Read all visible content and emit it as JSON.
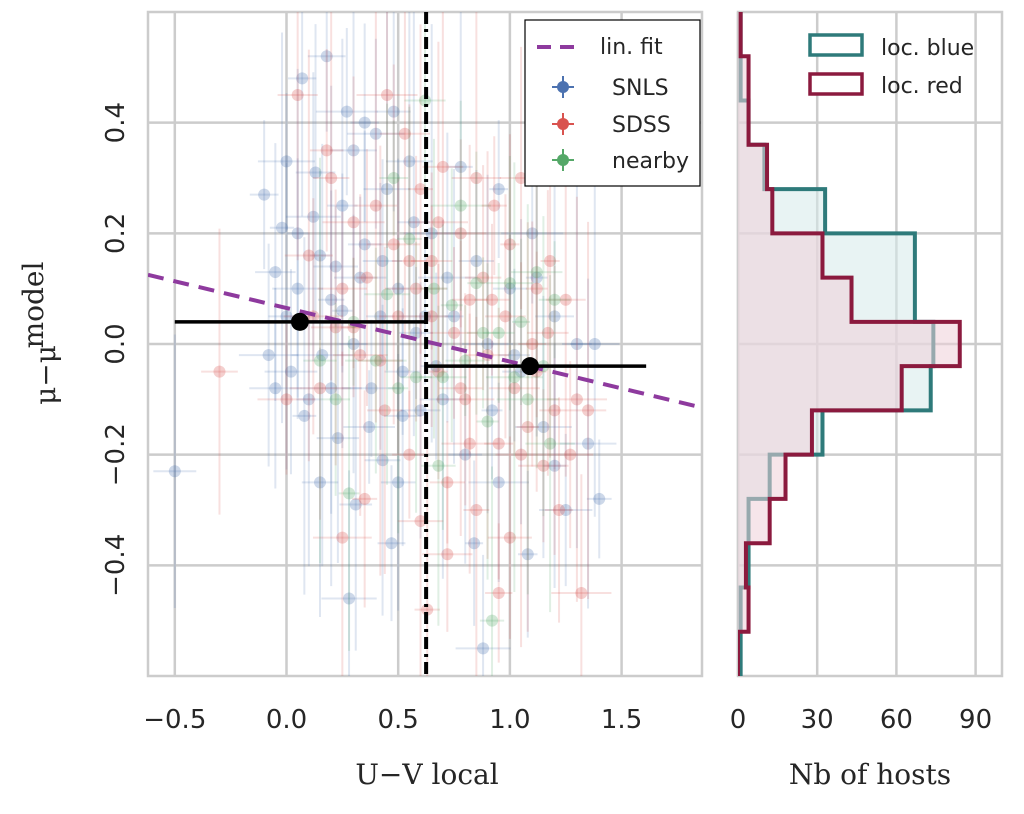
{
  "chart_data": [
    {
      "type": "scatter",
      "xlabel": "U−V local",
      "ylabel": "μ−μ^model",
      "ylabel_main": "μ−μ",
      "ylabel_sup": "model",
      "xlim": [
        -0.62,
        1.86
      ],
      "ylim": [
        -0.6,
        0.6
      ],
      "xticks": [
        -0.5,
        0.0,
        0.5,
        1.0,
        1.5
      ],
      "xtick_labels": [
        "−0.5",
        "0.0",
        "0.5",
        "1.0",
        "1.5"
      ],
      "yticks": [
        -0.4,
        -0.2,
        0.0,
        0.2,
        0.4
      ],
      "ytick_labels": [
        "−0.4",
        "−0.2",
        "0.0",
        "0.2",
        "0.4"
      ],
      "grid": true,
      "legend_position": "top-right",
      "legend": [
        "lin. fit",
        "SNLS",
        "SDSS",
        "nearby"
      ],
      "colors": {
        "SNLS": "#4C72B0",
        "SDSS": "#DD8452",
        "SDSS_marker": "#D9534F",
        "nearby": "#55A868",
        "fit": "#8E3A9E",
        "summary": "#000000",
        "grid": "#cccccc"
      },
      "split_x": 0.625,
      "lin_fit": {
        "x": [
          -0.62,
          1.86
        ],
        "y": [
          0.125,
          -0.115
        ]
      },
      "bin_means": [
        {
          "x": 0.06,
          "y": 0.04,
          "xerr_low": 0.56,
          "xerr_high": 0.565,
          "yerr": 0.0
        },
        {
          "x": 1.09,
          "y": -0.04,
          "xerr_low": 0.465,
          "xerr_high": 0.52,
          "yerr": 0.0
        }
      ],
      "series": [
        {
          "name": "SNLS",
          "points": [
            [
              -0.5,
              -0.23
            ],
            [
              -0.1,
              0.27
            ],
            [
              -0.05,
              0.13
            ],
            [
              0.0,
              0.33
            ],
            [
              0.0,
              0.05
            ],
            [
              0.02,
              -0.05
            ],
            [
              0.05,
              0.2
            ],
            [
              0.07,
              0.48
            ],
            [
              0.1,
              -0.1
            ],
            [
              0.13,
              0.31
            ],
            [
              0.15,
              0.16
            ],
            [
              0.16,
              -0.02
            ],
            [
              0.18,
              0.52
            ],
            [
              0.2,
              0.08
            ],
            [
              0.23,
              -0.17
            ],
            [
              0.25,
              0.25
            ],
            [
              0.27,
              0.42
            ],
            [
              0.3,
              0.0
            ],
            [
              0.31,
              -0.29
            ],
            [
              0.33,
              0.12
            ],
            [
              0.35,
              0.18
            ],
            [
              0.38,
              -0.08
            ],
            [
              0.4,
              0.38
            ],
            [
              0.42,
              0.05
            ],
            [
              0.43,
              -0.21
            ],
            [
              0.45,
              0.28
            ],
            [
              0.47,
              -0.36
            ],
            [
              0.5,
              0.1
            ],
            [
              0.52,
              -0.05
            ],
            [
              0.55,
              0.33
            ],
            [
              0.57,
              0.22
            ],
            [
              0.6,
              -0.12
            ],
            [
              0.28,
              -0.46
            ],
            [
              0.52,
              -0.13
            ],
            [
              0.35,
              0.4
            ],
            [
              0.08,
              -0.13
            ],
            [
              -0.05,
              -0.08
            ],
            [
              0.2,
              -0.08
            ],
            [
              0.65,
              0.2
            ],
            [
              0.7,
              -0.1
            ],
            [
              0.75,
              0.05
            ],
            [
              0.8,
              -0.2
            ],
            [
              0.85,
              0.15
            ],
            [
              0.9,
              0.0
            ],
            [
              0.95,
              -0.25
            ],
            [
              1.0,
              0.1
            ],
            [
              1.05,
              -0.05
            ],
            [
              1.1,
              0.2
            ],
            [
              1.15,
              -0.15
            ],
            [
              1.2,
              0.05
            ],
            [
              1.25,
              -0.3
            ],
            [
              1.3,
              0.0
            ],
            [
              1.4,
              -0.28
            ],
            [
              1.38,
              0.0
            ],
            [
              1.35,
              -0.18
            ],
            [
              0.88,
              -0.55
            ],
            [
              1.08,
              -0.38
            ],
            [
              0.95,
              0.28
            ],
            [
              0.12,
              0.23
            ],
            [
              -0.02,
              0.21
            ],
            [
              0.25,
              0.06
            ],
            [
              0.43,
              0.15
            ],
            [
              0.58,
              0.02
            ],
            [
              0.67,
              -0.04
            ],
            [
              0.78,
              0.32
            ],
            [
              0.84,
              -0.36
            ],
            [
              1.12,
              0.12
            ],
            [
              1.2,
              -0.22
            ],
            [
              0.15,
              -0.25
            ],
            [
              0.37,
              -0.15
            ],
            [
              0.05,
              0.1
            ],
            [
              -0.08,
              -0.02
            ],
            [
              0.3,
              0.35
            ],
            [
              0.48,
              0.42
            ],
            [
              0.62,
              0.05
            ],
            [
              0.92,
              -0.12
            ],
            [
              1.02,
              -0.02
            ],
            [
              0.22,
              0.14
            ],
            [
              0.5,
              -0.25
            ],
            [
              0.72,
              0.12
            ]
          ]
        },
        {
          "name": "SDSS",
          "points": [
            [
              -0.3,
              -0.05
            ],
            [
              0.0,
              -0.1
            ],
            [
              0.05,
              0.45
            ],
            [
              0.1,
              0.16
            ],
            [
              0.15,
              -0.08
            ],
            [
              0.2,
              0.3
            ],
            [
              0.22,
              0.03
            ],
            [
              0.25,
              -0.35
            ],
            [
              0.3,
              0.22
            ],
            [
              0.33,
              -0.02
            ],
            [
              0.36,
              0.12
            ],
            [
              0.4,
              0.25
            ],
            [
              0.44,
              -0.12
            ],
            [
              0.48,
              0.18
            ],
            [
              0.5,
              0.05
            ],
            [
              0.53,
              0.38
            ],
            [
              0.55,
              -0.2
            ],
            [
              0.58,
              0.1
            ],
            [
              0.6,
              0.28
            ],
            [
              0.63,
              -0.48
            ],
            [
              0.65,
              0.15
            ],
            [
              0.68,
              -0.05
            ],
            [
              0.7,
              0.32
            ],
            [
              0.72,
              -0.25
            ],
            [
              0.75,
              0.02
            ],
            [
              0.78,
              0.2
            ],
            [
              0.8,
              -0.1
            ],
            [
              0.82,
              0.08
            ],
            [
              0.85,
              -0.3
            ],
            [
              0.88,
              0.12
            ],
            [
              0.9,
              -0.02
            ],
            [
              0.93,
              0.25
            ],
            [
              0.95,
              -0.18
            ],
            [
              0.98,
              0.05
            ],
            [
              1.0,
              0.18
            ],
            [
              1.02,
              -0.08
            ],
            [
              1.05,
              0.3
            ],
            [
              1.08,
              -0.15
            ],
            [
              1.1,
              0.0
            ],
            [
              1.12,
              -0.05
            ],
            [
              1.15,
              -0.22
            ],
            [
              1.18,
              0.15
            ],
            [
              1.2,
              -0.12
            ],
            [
              1.22,
              -0.3
            ],
            [
              1.25,
              0.08
            ],
            [
              1.27,
              -0.2
            ],
            [
              1.3,
              -0.1
            ],
            [
              1.32,
              -0.45
            ],
            [
              1.35,
              -0.12
            ],
            [
              0.95,
              -0.45
            ],
            [
              0.72,
              -0.38
            ],
            [
              0.45,
              0.45
            ],
            [
              0.18,
              0.35
            ],
            [
              0.35,
              -0.28
            ],
            [
              0.6,
              -0.32
            ],
            [
              0.85,
              0.3
            ],
            [
              1.0,
              -0.35
            ],
            [
              0.25,
              0.1
            ],
            [
              0.42,
              -0.03
            ],
            [
              0.65,
              0.05
            ],
            [
              0.78,
              -0.08
            ],
            [
              0.92,
              0.08
            ],
            [
              1.05,
              -0.2
            ],
            [
              1.17,
              0.02
            ],
            [
              0.55,
              0.15
            ],
            [
              0.3,
              0.03
            ],
            [
              0.12,
              0.05
            ],
            [
              0.68,
              0.22
            ],
            [
              0.82,
              -0.18
            ],
            [
              1.12,
              0.1
            ]
          ]
        },
        {
          "name": "nearby",
          "points": [
            [
              0.15,
              -0.03
            ],
            [
              0.22,
              -0.1
            ],
            [
              0.3,
              0.04
            ],
            [
              0.4,
              -0.03
            ],
            [
              0.45,
              0.09
            ],
            [
              0.5,
              -0.08
            ],
            [
              0.55,
              0.19
            ],
            [
              0.58,
              -0.06
            ],
            [
              0.62,
              0.44
            ],
            [
              0.66,
              0.1
            ],
            [
              0.7,
              -0.06
            ],
            [
              0.74,
              0.07
            ],
            [
              0.8,
              -0.03
            ],
            [
              0.85,
              0.11
            ],
            [
              0.9,
              -0.14
            ],
            [
              0.95,
              0.02
            ],
            [
              1.0,
              0.11
            ],
            [
              1.02,
              -0.06
            ],
            [
              1.05,
              0.04
            ],
            [
              1.08,
              -0.1
            ],
            [
              1.12,
              0.13
            ],
            [
              1.15,
              -0.04
            ],
            [
              1.2,
              0.08
            ],
            [
              0.28,
              -0.27
            ],
            [
              0.68,
              -0.22
            ],
            [
              0.78,
              0.25
            ],
            [
              0.92,
              -0.5
            ],
            [
              1.18,
              -0.18
            ],
            [
              0.48,
              0.3
            ],
            [
              0.88,
              0.02
            ]
          ]
        }
      ]
    },
    {
      "type": "histogram",
      "orientation": "horizontal",
      "xlabel": "Nb of hosts",
      "xlim": [
        0,
        100
      ],
      "xticks": [
        0,
        30,
        60,
        90
      ],
      "xtick_labels": [
        "0",
        "30",
        "60",
        "90"
      ],
      "ylim": [
        -0.6,
        0.6
      ],
      "grid": true,
      "legend_position": "top-right",
      "bin_edges": [
        -0.6,
        -0.52,
        -0.44,
        -0.36,
        -0.28,
        -0.2,
        -0.12,
        -0.04,
        0.04,
        0.12,
        0.2,
        0.28,
        0.36,
        0.44,
        0.52,
        0.6
      ],
      "series": [
        {
          "name": "loc. blue",
          "color": "#2E7A7A",
          "fill": "#d6eaea",
          "counts": [
            1,
            1,
            4,
            4,
            12,
            32,
            73,
            74,
            67,
            67,
            33,
            10,
            4,
            1,
            1
          ]
        },
        {
          "name": "loc. red",
          "color": "#8B1A3E",
          "fill": "#efd0d9",
          "counts": [
            0,
            4,
            3,
            12,
            18,
            28,
            62,
            84,
            43,
            32,
            13,
            11,
            4,
            4,
            1
          ]
        }
      ]
    }
  ]
}
